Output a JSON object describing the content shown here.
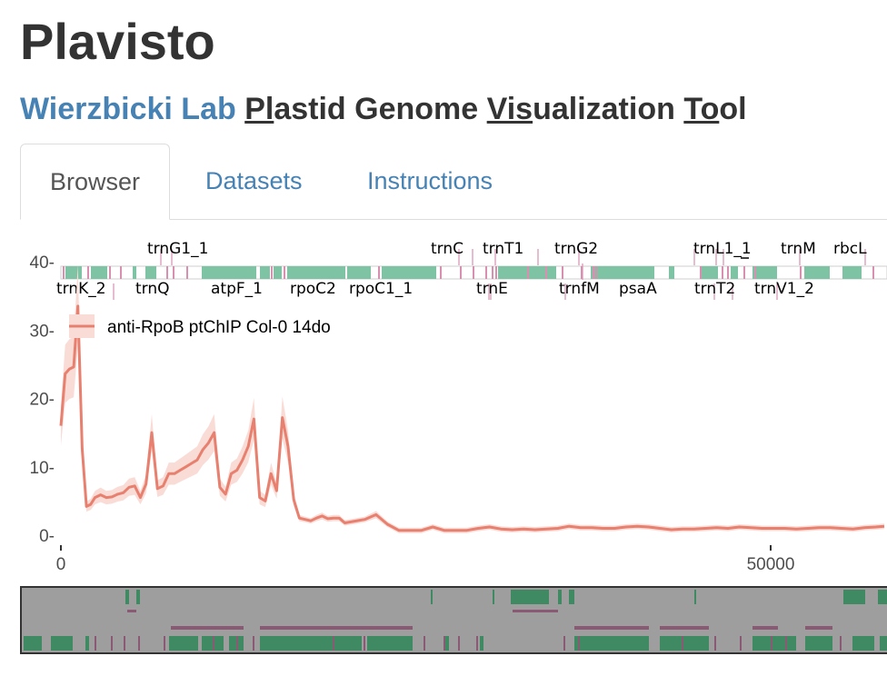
{
  "app": {
    "title": "Plavisto",
    "lab": "Wierzbicki Lab",
    "subtitle_words": [
      {
        "u": "Pl",
        "rest": "astid"
      },
      {
        "u": "",
        "rest": "Genome"
      },
      {
        "u": "Vis",
        "rest": "ualization"
      },
      {
        "u": "To",
        "rest": "ol"
      }
    ]
  },
  "tabs": [
    {
      "label": "Browser",
      "active": true
    },
    {
      "label": "Datasets",
      "active": false
    },
    {
      "label": "Instructions",
      "active": false
    }
  ],
  "colors": {
    "line": "#e8806f",
    "band": "#fadcd7",
    "gene": "#7ec4a4",
    "trna": "#d98fb0",
    "overview_bg": "#9e9e9e",
    "overview_gene": "#3f8a63",
    "overview_rna": "#8a5a74"
  },
  "chart_data": {
    "type": "line",
    "x_ticks": [
      {
        "value": 0,
        "label": "0"
      },
      {
        "value": 50000,
        "label": "50000"
      }
    ],
    "y_ticks": [
      {
        "value": 0,
        "label": "0-"
      },
      {
        "value": 10,
        "label": "10-"
      },
      {
        "value": 20,
        "label": "20-"
      },
      {
        "value": 30,
        "label": "30-"
      },
      {
        "value": 40,
        "label": "40-"
      }
    ],
    "xlim": [
      0,
      58000
    ],
    "ylim": [
      -1,
      42
    ],
    "grid": false,
    "legend_position": "top-left",
    "series": [
      {
        "name": "anti-RpoB ptChIP Col-0 14do",
        "x": [
          0,
          300,
          600,
          900,
          1200,
          1500,
          1800,
          2100,
          2400,
          2800,
          3200,
          3600,
          4000,
          4400,
          4800,
          5200,
          5600,
          6000,
          6400,
          6800,
          7200,
          7600,
          8000,
          8400,
          8800,
          9200,
          9600,
          10000,
          10400,
          10800,
          11200,
          11600,
          12000,
          12400,
          12800,
          13200,
          13600,
          14000,
          14400,
          14800,
          15200,
          15600,
          16000,
          16400,
          16800,
          17200,
          17600,
          18000,
          18400,
          18800,
          19200,
          19600,
          20000,
          20600,
          21400,
          22200,
          23000,
          23800,
          24600,
          25400,
          26200,
          27000,
          27800,
          28600,
          29400,
          30200,
          31000,
          31800,
          32600,
          33400,
          34200,
          35000,
          35800,
          36600,
          37400,
          38200,
          39000,
          39800,
          40600,
          41400,
          42200,
          43000,
          43800,
          44600,
          45400,
          46200,
          47000,
          47800,
          48600,
          49400,
          50200,
          51000,
          51800,
          52600,
          53400,
          54200,
          55000,
          55800,
          56600,
          57400,
          58000
        ],
        "y": [
          16,
          23.6,
          24.3,
          24.6,
          33.5,
          12.7,
          4.2,
          4.5,
          5.5,
          5.9,
          5.5,
          5.6,
          6.0,
          6.2,
          7.0,
          7.2,
          5.5,
          7.5,
          15.0,
          6.8,
          7.2,
          9.0,
          9.0,
          9.5,
          10.0,
          10.5,
          11.0,
          12.5,
          13.5,
          15.0,
          7.0,
          6.0,
          9.0,
          9.5,
          11.0,
          13.0,
          17.0,
          5.5,
          5.0,
          9.0,
          6.5,
          17.2,
          13.0,
          5.2,
          2.5,
          2.3,
          2.1,
          2.5,
          2.8,
          2.4,
          2.5,
          2.5,
          1.8,
          2.0,
          2.3,
          3.0,
          1.6,
          0.7,
          0.7,
          0.7,
          1.2,
          0.7,
          0.7,
          0.7,
          1.0,
          1.2,
          0.9,
          0.8,
          0.9,
          0.8,
          0.9,
          1.0,
          1.3,
          1.1,
          1.1,
          1.0,
          1.0,
          1.2,
          1.3,
          1.2,
          1.0,
          0.8,
          0.9,
          0.9,
          1.0,
          1.1,
          1.0,
          1.2,
          1.1,
          1.0,
          1.0,
          1.0,
          0.9,
          1.0,
          1.1,
          1.1,
          1.0,
          0.9,
          1.1,
          1.2,
          1.3
        ]
      }
    ]
  },
  "gene_labels": [
    {
      "name": "trnG1_1",
      "row": "top"
    },
    {
      "name": "trnC",
      "row": "top"
    },
    {
      "name": "trnT1",
      "row": "top"
    },
    {
      "name": "trnG2",
      "row": "top"
    },
    {
      "name": "trnL1_1",
      "row": "top"
    },
    {
      "name": "trnM",
      "row": "top"
    },
    {
      "name": "rbcL",
      "row": "top"
    },
    {
      "name": "trnK_2",
      "row": "bottom"
    },
    {
      "name": "trnQ",
      "row": "bottom"
    },
    {
      "name": "atpF_1",
      "row": "bottom"
    },
    {
      "name": "rpoC2",
      "row": "bottom"
    },
    {
      "name": "rpoC1_1",
      "row": "bottom"
    },
    {
      "name": "trnE",
      "row": "bottom"
    },
    {
      "name": "trnfM",
      "row": "bottom"
    },
    {
      "name": "psaA",
      "row": "bottom"
    },
    {
      "name": "trnT2",
      "row": "bottom"
    },
    {
      "name": "trnV1_2",
      "row": "bottom"
    }
  ]
}
